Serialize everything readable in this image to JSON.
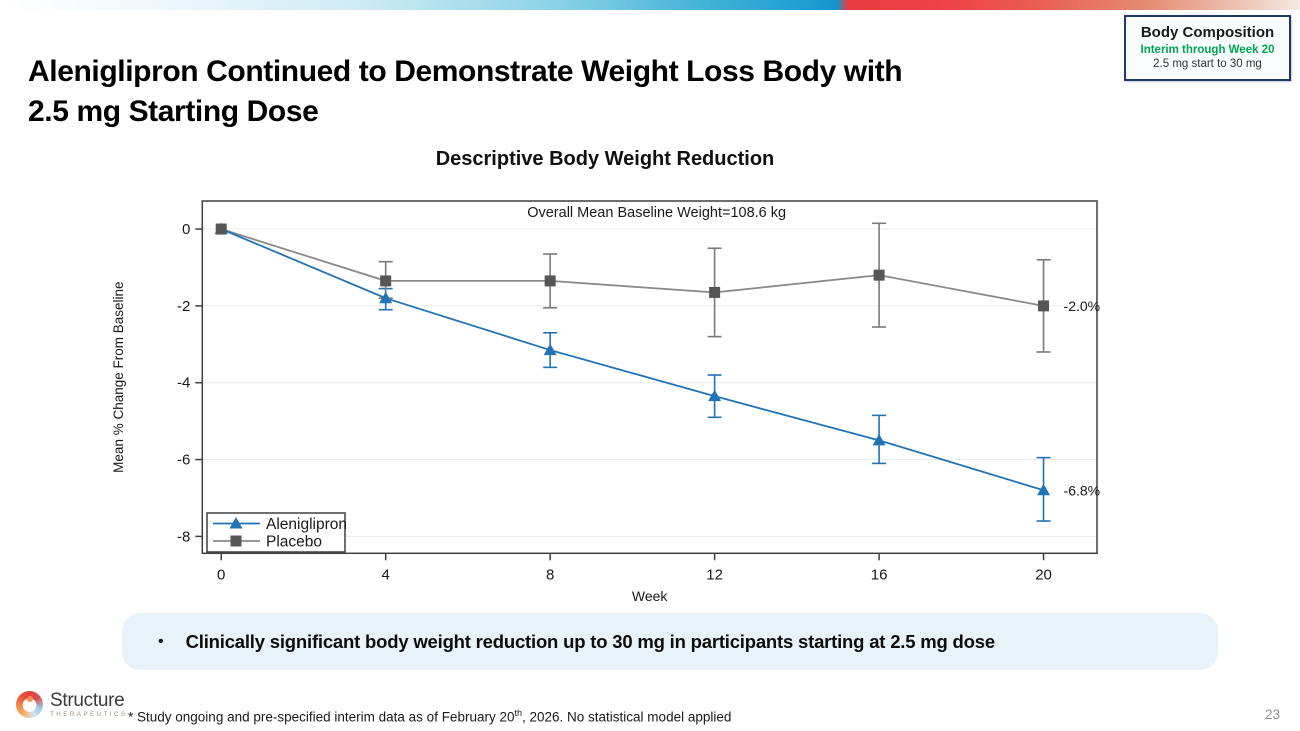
{
  "slide": {
    "title_lines": [
      "Aleniglipron Continued to Demonstrate Weight Loss Body with",
      "2.5 mg Starting Dose"
    ],
    "bullet_marker": "•",
    "bullet": "Clinically significant body weight reduction up to 30 mg in participants starting at 2.5 mg dose",
    "footnote_pre": "* Study ongoing and pre-specified interim data as of February 20",
    "footnote_sup": "th",
    "footnote_post": ", 2026. No statistical model applied",
    "page_number": "23"
  },
  "badge": {
    "title": "Body Composition",
    "subtitle": "Interim through Week 20",
    "detail": "2.5 mg start to 30 mg",
    "subtitle_color": "#00A651",
    "border_color": "#1F3864"
  },
  "logo": {
    "name": "Structure",
    "sub": "THERAPEUTICS"
  },
  "chart_data": {
    "type": "line",
    "title": "Descriptive Body Weight Reduction",
    "annotation": "Overall Mean Baseline Weight=108.6 kg",
    "xlabel": "Week",
    "ylabel": "Mean % Change From Baseline",
    "x": [
      0,
      4,
      8,
      12,
      16,
      20
    ],
    "xticks": [
      0,
      4,
      8,
      12,
      16,
      20
    ],
    "yticks": [
      0,
      -2,
      -4,
      -6,
      -8
    ],
    "xlim": [
      -0.46,
      21.3
    ],
    "ylim": [
      -8.44,
      0.73
    ],
    "grid": true,
    "legend_position": "bottom-left",
    "frame_color": "#3f3f3f",
    "grid_color": "#ececec",
    "series": [
      {
        "name": "Aleniglipron",
        "marker": "triangle",
        "color": "#2173B6",
        "marker_color": "#2173B6",
        "values": [
          0,
          -1.8,
          -3.15,
          -4.35,
          -5.5,
          -6.8
        ],
        "err_hi": [
          0,
          0.25,
          0.45,
          0.55,
          0.65,
          0.85
        ],
        "err_lo": [
          0,
          0.3,
          0.45,
          0.55,
          0.6,
          0.8
        ],
        "end_label": "-6.8%"
      },
      {
        "name": "Placebo",
        "marker": "square",
        "color": "#8a8a8a",
        "marker_color": "#565656",
        "values": [
          0,
          -1.35,
          -1.35,
          -1.65,
          -1.2,
          -2.0
        ],
        "err_hi": [
          0,
          0.5,
          0.7,
          1.15,
          1.35,
          1.2
        ],
        "err_lo": [
          0,
          0.45,
          0.7,
          1.15,
          1.35,
          1.2
        ],
        "end_label": "-2.0%"
      }
    ]
  }
}
